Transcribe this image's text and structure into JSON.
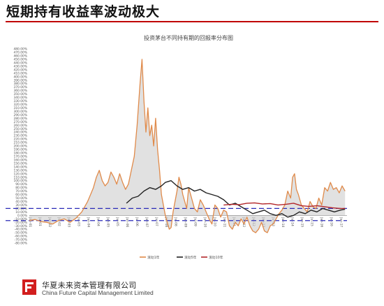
{
  "header": {
    "title": "短期持有收益率波动极大"
  },
  "footer": {
    "company_cn": "华夏未来资本管理有限公司",
    "company_en": "China Future Capital Management Limited"
  },
  "colors": {
    "accent": "#c00000",
    "series_1y": "#e08a4a",
    "series_5y": "#222222",
    "series_10y": "#b3262a",
    "ref_line": "#2b2bb8",
    "area": "#c9c9c9"
  },
  "chart_data": {
    "type": "line",
    "title": "投资茅台不同持有期的回报率分布图",
    "y_ticks": [
      "-80.00%",
      "-70.00%",
      "-60.00%",
      "-50.00%",
      "-40.00%",
      "-30.00%",
      "-20.00%",
      "-10.00%",
      "0.00%",
      "10.00%",
      "20.00%",
      "30.00%",
      "40.00%",
      "50.00%",
      "60.00%",
      "70.00%",
      "80.00%",
      "90.00%",
      "100.00%",
      "110.00%",
      "120.00%",
      "130.00%",
      "140.00%",
      "150.00%",
      "160.00%",
      "170.00%",
      "180.00%",
      "190.00%",
      "200.00%",
      "210.00%",
      "220.00%",
      "230.00%",
      "240.00%",
      "250.00%",
      "260.00%",
      "270.00%",
      "280.00%",
      "290.00%",
      "300.00%",
      "310.00%",
      "320.00%",
      "330.00%",
      "340.00%",
      "350.00%",
      "360.00%",
      "370.00%",
      "380.00%",
      "390.00%",
      "400.00%",
      "410.00%",
      "420.00%",
      "430.00%",
      "440.00%",
      "450.00%",
      "460.00%",
      "470.00%",
      "480.00%"
    ],
    "ylim": [
      -80,
      480
    ],
    "x_ticks": [
      "Jan-01",
      "Jul-01",
      "Jan-02",
      "Jul-02",
      "Jan-03",
      "Jul-03",
      "Jan-04",
      "Jul-04",
      "Jan-05",
      "Jul-05",
      "Jan-06",
      "Jul-06",
      "Jan-07",
      "Jul-07",
      "Jan-08",
      "Jul-08",
      "Jan-09",
      "Jul-09",
      "Jan-10",
      "Jul-10",
      "Jan-11",
      "Jul-11",
      "Jan-12",
      "Jul-12",
      "Jan-13",
      "Jul-13",
      "Jan-14",
      "Jul-14",
      "Jan-15",
      "Jul-15",
      "Jan-16",
      "Jul-16",
      "Jan-17"
    ],
    "xlim": [
      2001.0,
      2017.35
    ],
    "ref_lines": [
      20,
      -15
    ],
    "legend_position": "bottom",
    "series": [
      {
        "name": "滚动1年",
        "x": [
          2001.0,
          2001.3,
          2001.6,
          2001.9,
          2002.2,
          2002.5,
          2002.8,
          2003.1,
          2003.4,
          2003.7,
          2003.85,
          2004.0,
          2004.15,
          2004.3,
          2004.45,
          2004.6,
          2004.75,
          2004.9,
          2005.05,
          2005.2,
          2005.35,
          2005.5,
          2005.65,
          2005.8,
          2005.95,
          2006.1,
          2006.25,
          2006.4,
          2006.55,
          2006.7,
          2006.8,
          2006.9,
          2007.0,
          2007.1,
          2007.2,
          2007.3,
          2007.4,
          2007.5,
          2007.6,
          2007.7,
          2007.8,
          2007.9,
          2008.0,
          2008.1,
          2008.2,
          2008.3,
          2008.4,
          2008.5,
          2008.6,
          2008.7,
          2008.8,
          2008.9,
          2009.0,
          2009.1,
          2009.2,
          2009.35,
          2009.5,
          2009.65,
          2009.8,
          2009.95,
          2010.1,
          2010.25,
          2010.4,
          2010.55,
          2010.7,
          2010.85,
          2011.0,
          2011.15,
          2011.3,
          2011.45,
          2011.6,
          2011.75,
          2011.9,
          2012.05,
          2012.2,
          2012.35,
          2012.5,
          2012.65,
          2012.8,
          2012.95,
          2013.1,
          2013.25,
          2013.4,
          2013.55,
          2013.7,
          2013.85,
          2014.0,
          2014.15,
          2014.3,
          2014.45,
          2014.55,
          2014.65,
          2014.75,
          2014.85,
          2015.0,
          2015.15,
          2015.3,
          2015.45,
          2015.6,
          2015.75,
          2015.9,
          2016.05,
          2016.2,
          2016.35,
          2016.5,
          2016.65,
          2016.8,
          2016.95,
          2017.1,
          2017.25
        ],
        "y": [
          -15,
          -12,
          -18,
          -20,
          -25,
          -15,
          -10,
          -20,
          -8,
          10,
          25,
          40,
          60,
          80,
          110,
          130,
          100,
          85,
          95,
          125,
          110,
          90,
          120,
          95,
          75,
          90,
          130,
          170,
          260,
          380,
          450,
          330,
          240,
          310,
          230,
          260,
          200,
          280,
          190,
          130,
          60,
          30,
          0,
          -20,
          -40,
          -35,
          10,
          40,
          70,
          110,
          90,
          60,
          40,
          20,
          80,
          50,
          20,
          10,
          45,
          30,
          10,
          -10,
          -25,
          30,
          20,
          -5,
          15,
          10,
          -30,
          -40,
          -20,
          -30,
          -10,
          -25,
          -5,
          -30,
          -45,
          -50,
          -40,
          -20,
          -45,
          -50,
          -30,
          -25,
          -10,
          5,
          15,
          30,
          70,
          50,
          110,
          120,
          75,
          60,
          30,
          20,
          10,
          40,
          25,
          20,
          50,
          30,
          80,
          70,
          95,
          75,
          80,
          65,
          85,
          70
        ]
      },
      {
        "name": "滚动5年",
        "x": [
          2006.0,
          2006.3,
          2006.6,
          2006.9,
          2007.2,
          2007.5,
          2007.8,
          2008.0,
          2008.3,
          2008.6,
          2008.9,
          2009.2,
          2009.5,
          2009.8,
          2010.1,
          2010.4,
          2010.7,
          2011.0,
          2011.3,
          2011.6,
          2011.9,
          2012.2,
          2012.5,
          2012.8,
          2013.1,
          2013.4,
          2013.7,
          2014.0,
          2014.3,
          2014.6,
          2014.9,
          2015.2,
          2015.5,
          2015.8,
          2016.1,
          2016.4,
          2016.7,
          2017.0,
          2017.25
        ],
        "y": [
          35,
          50,
          55,
          70,
          80,
          75,
          85,
          95,
          100,
          85,
          75,
          80,
          70,
          75,
          65,
          60,
          55,
          45,
          30,
          35,
          25,
          15,
          5,
          10,
          15,
          5,
          0,
          5,
          -5,
          0,
          10,
          5,
          15,
          10,
          20,
          15,
          10,
          15,
          18
        ]
      },
      {
        "name": "滚动10年",
        "x": [
          2011.0,
          2011.4,
          2011.8,
          2012.2,
          2012.6,
          2013.0,
          2013.4,
          2013.8,
          2014.2,
          2014.6,
          2015.0,
          2015.4,
          2015.8,
          2016.2,
          2016.6,
          2017.0,
          2017.25
        ],
        "y": [
          30,
          32,
          31,
          35,
          36,
          33,
          34,
          30,
          32,
          35,
          28,
          26,
          28,
          25,
          22,
          20,
          20
        ]
      }
    ]
  }
}
